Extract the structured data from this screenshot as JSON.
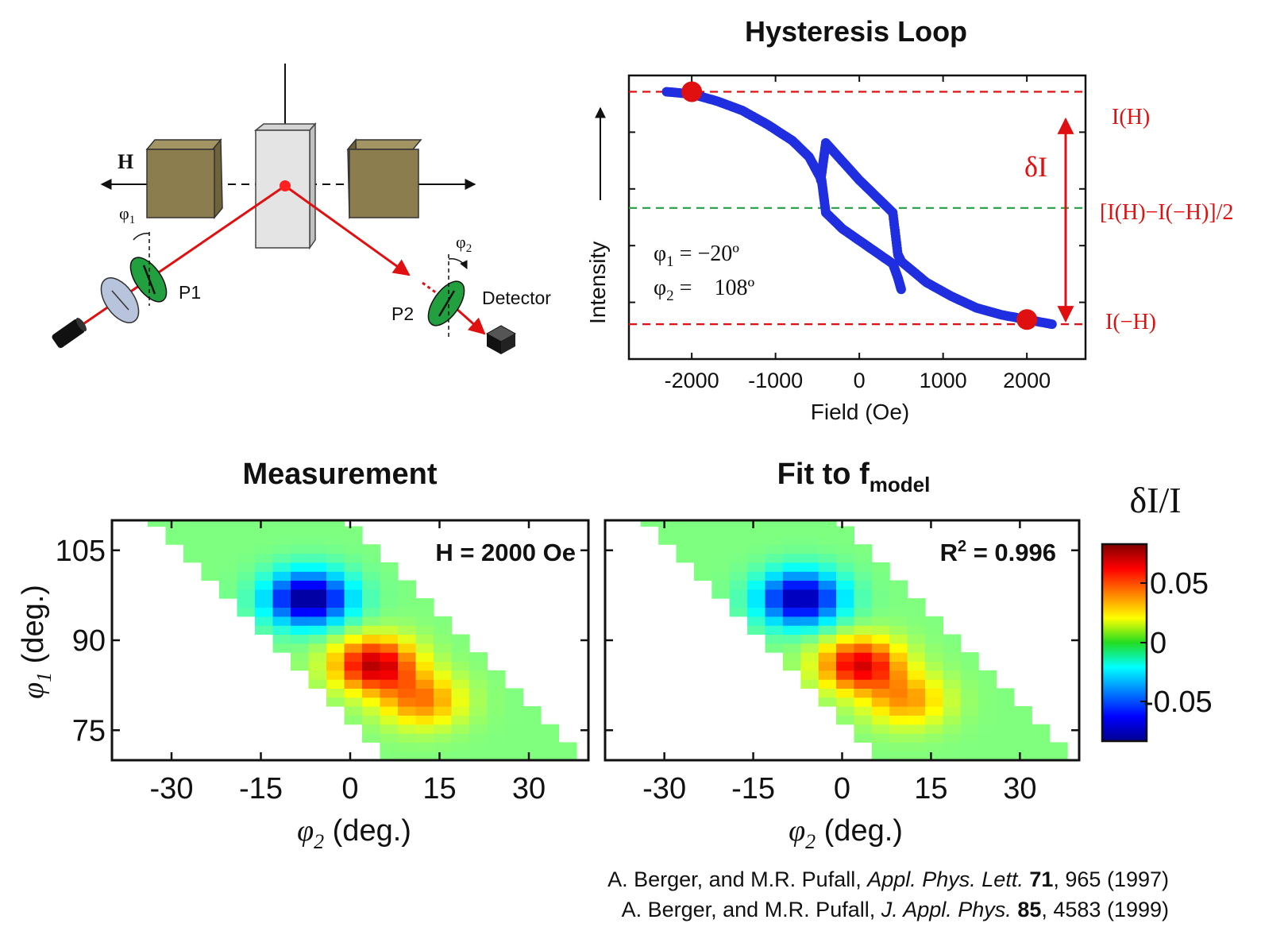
{
  "setup": {
    "field_label": "H",
    "phi1_label": "φ",
    "phi1_sub": "1",
    "phi2_label": "φ",
    "phi2_sub": "2",
    "p1_label": "P1",
    "p2_label": "P2",
    "detector_label": "Detector",
    "colors": {
      "magnet": "#8c7d4e",
      "sample": "#e0e0e0",
      "laser": "#e01010",
      "polarizer": "#22a040",
      "compensator": "#b8c4dc"
    }
  },
  "hysteresis": {
    "title": "Hysteresis Loop",
    "xlabel": "Field (Oe)",
    "ylabel": "Intensity",
    "xticks": [
      "-2000",
      "-1000",
      "0",
      "1000",
      "2000"
    ],
    "phi1_text": "φ",
    "phi1_sub": "1",
    "phi1_value": " = −20º",
    "phi2_text": "φ",
    "phi2_sub": "2",
    "phi2_value": " =    108º",
    "label_top": "I(H)",
    "label_mid": "[I(H)−I(−H)]/2",
    "label_bot": "I(−H)",
    "delta_label": "δI"
  },
  "measurement": {
    "title": "Measurement",
    "annotation": "H = 2000 Oe",
    "xticks": [
      "-30",
      "-15",
      "0",
      "15",
      "30"
    ],
    "yticks": [
      "105",
      "90",
      "75"
    ],
    "xlabel_sym": "φ",
    "xlabel_sub": "2",
    "xlabel_unit": " (deg.)",
    "ylabel_sym": "φ",
    "ylabel_sub": "1",
    "ylabel_unit": " (deg.)"
  },
  "fit": {
    "title_main": "Fit to f",
    "title_sub": "model",
    "annotation_pre": "R",
    "annotation_sup": "2",
    "annotation_post": " = 0.996",
    "xticks": [
      "-30",
      "-15",
      "0",
      "15",
      "30"
    ],
    "xlabel_sym": "φ",
    "xlabel_sub": "2",
    "xlabel_unit": " (deg.)"
  },
  "colorbar": {
    "title": "δI/I",
    "ticks": [
      "0.05",
      "0",
      "-0.05"
    ]
  },
  "references": {
    "ref1_authors": "A. Berger, and M.R. Pufall, ",
    "ref1_journal": "Appl. Phys. Lett.",
    "ref1_volume": "71",
    "ref1_rest": ", 965 (1997)",
    "ref2_authors": "A. Berger, and M.R. Pufall, ",
    "ref2_journal": "J. Appl. Phys.",
    "ref2_volume": "85",
    "ref2_rest": ", 4583 (1999)"
  },
  "chart_data": [
    {
      "type": "scatter",
      "title": "Hysteresis Loop",
      "xlabel": "Field (Oe)",
      "ylabel": "Intensity",
      "xlim": [
        -2750,
        2700
      ],
      "ylim": [
        -0.15,
        1.07
      ],
      "series": [
        {
          "x": [
            -2300,
            -2000,
            -1700,
            -1400,
            -1100,
            -800,
            -600,
            -450,
            -400,
            -200,
            0,
            200,
            400,
            460,
            500
          ],
          "y": [
            1.0,
            0.99,
            0.96,
            0.92,
            0.86,
            0.79,
            0.72,
            0.62,
            0.48,
            0.41,
            0.36,
            0.31,
            0.26,
            0.2,
            0.15
          ]
        },
        {
          "x": [
            -460,
            -400,
            -200,
            0,
            200,
            400,
            460,
            500
          ],
          "y": [
            0.62,
            0.78,
            0.7,
            0.62,
            0.55,
            0.48,
            0.3,
            0.27
          ]
        },
        {
          "x": [
            500,
            800,
            1100,
            1400,
            1700,
            2000,
            2300
          ],
          "y": [
            0.27,
            0.18,
            0.12,
            0.07,
            0.04,
            0.02,
            0.0
          ]
        }
      ],
      "markers": [
        {
          "x": -2000,
          "y": 1.0
        },
        {
          "x": 2000,
          "y": 0.02
        }
      ],
      "reference_lines": [
        {
          "y": 1.0,
          "label": "I(H)"
        },
        {
          "y": 0.5,
          "label": "[I(H)−I(−H)]/2"
        },
        {
          "y": 0.0,
          "label": "I(−H)"
        }
      ]
    },
    {
      "type": "heatmap",
      "title": "Measurement",
      "xlabel": "φ2 (deg.)",
      "ylabel": "φ1 (deg.)",
      "xlim": [
        -40,
        40
      ],
      "ylim": [
        70,
        110
      ],
      "x_step": 3,
      "y_step": 1.5,
      "band": {
        "anti_diagonal": "φ1 + φ2",
        "min": 76,
        "max": 110
      },
      "features": [
        {
          "center": [
            -7,
            97
          ],
          "value": -0.08
        },
        {
          "center": [
            4,
            86
          ],
          "value": 0.07
        },
        {
          "center": [
            12,
            80
          ],
          "value": 0.04
        }
      ],
      "colorbar_range": [
        -0.08,
        0.08
      ]
    },
    {
      "type": "heatmap",
      "title": "Fit to fmodel",
      "xlabel": "φ2 (deg.)",
      "xlim": [
        -40,
        40
      ],
      "ylim": [
        70,
        110
      ],
      "x_step": 3,
      "y_step": 1.5,
      "band": {
        "anti_diagonal": "φ1 + φ2",
        "min": 76,
        "max": 110
      },
      "features": [
        {
          "center": [
            -7,
            97
          ],
          "value": -0.075
        },
        {
          "center": [
            3,
            86
          ],
          "value": 0.065
        },
        {
          "center": [
            11,
            80
          ],
          "value": 0.035
        }
      ],
      "colorbar_range": [
        -0.08,
        0.08
      ]
    }
  ]
}
